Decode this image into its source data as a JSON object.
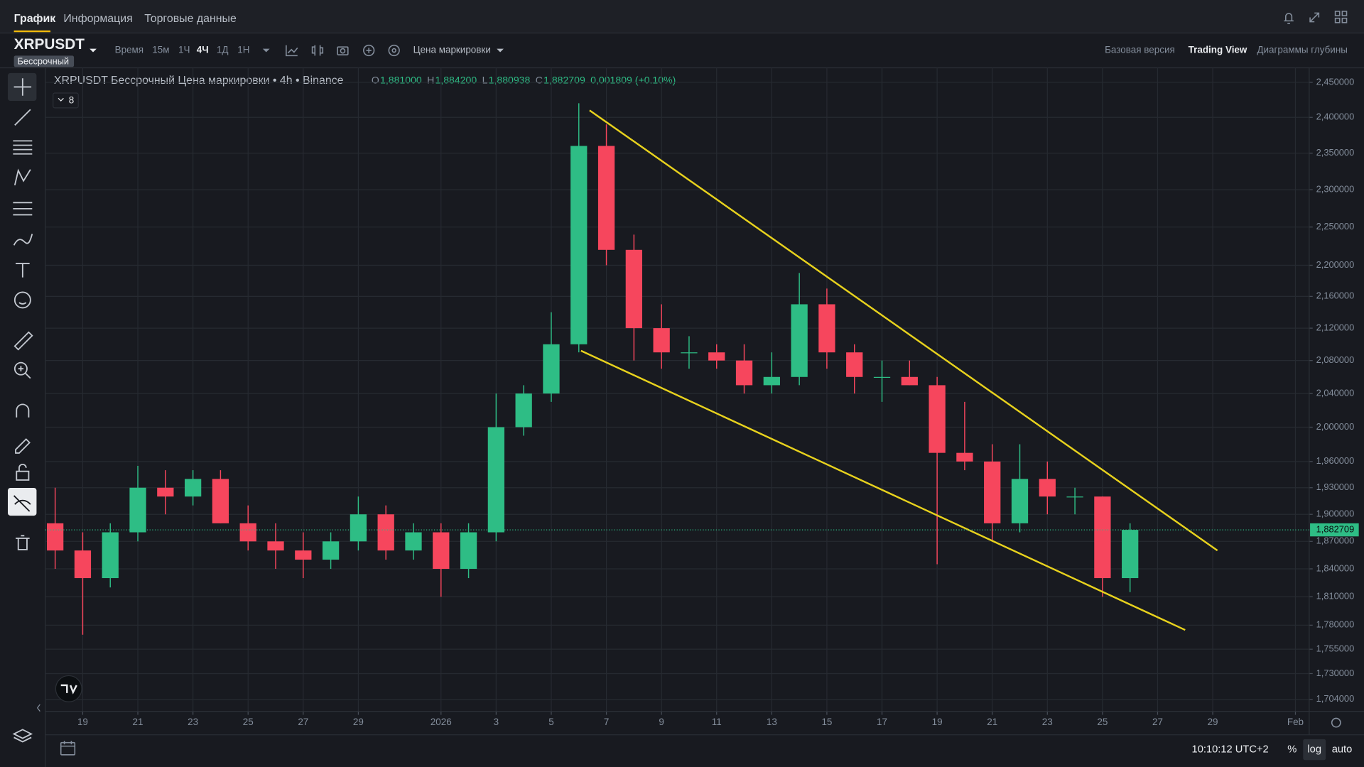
{
  "header": {
    "tabs": [
      "График",
      "Информация",
      "Торговые данные"
    ],
    "symbol": "XRPUSDT",
    "contract": "Бессрочный",
    "intervals_label": "Время",
    "intervals": [
      "15м",
      "1Ч",
      "4Ч",
      "1Д",
      "1Н"
    ],
    "price_type": "Цена маркировки",
    "views": [
      "Базовая версия",
      "Trading View",
      "Диаграммы глубины"
    ]
  },
  "legend": {
    "title": "XRPUSDT Бессрочный Цена маркировки • 4h • Binance",
    "ohlc": [
      {
        "key": "O",
        "value": "1,881000"
      },
      {
        "key": "H",
        "value": "1,884200"
      },
      {
        "key": "L",
        "value": "1,880938"
      },
      {
        "key": "C",
        "value": "1,882709"
      }
    ],
    "change": "0,001809 (+0.10%)",
    "indicators": "8"
  },
  "footer": {
    "time": "10:10:12 UTC+2",
    "percent": "%",
    "log": "log",
    "auto": "auto"
  },
  "chart_data": {
    "type": "candlestick",
    "log_scale": true,
    "grid": true,
    "up_color": "#2ebd85",
    "down_color": "#f6465d",
    "x": [
      -1,
      0,
      1,
      2,
      3,
      4,
      5,
      6,
      7,
      8,
      9,
      10,
      11,
      12,
      13,
      14,
      15,
      16,
      17,
      18,
      19,
      20,
      21,
      22,
      23,
      24,
      25,
      26,
      27,
      28,
      29,
      30,
      31,
      32,
      33,
      34,
      35,
      36,
      37,
      38
    ],
    "open": [
      1.89,
      1.86,
      1.83,
      1.88,
      1.93,
      1.92,
      1.94,
      1.89,
      1.87,
      1.86,
      1.85,
      1.87,
      1.9,
      1.86,
      1.88,
      1.84,
      1.88,
      2.0,
      2.04,
      2.1,
      2.36,
      2.22,
      2.12,
      2.09,
      2.09,
      2.08,
      2.05,
      2.06,
      2.15,
      2.09,
      2.06,
      2.06,
      2.05,
      1.97,
      1.96,
      1.89,
      1.94,
      1.92,
      1.92,
      1.83
    ],
    "high": [
      1.93,
      1.88,
      1.89,
      1.955,
      1.95,
      1.95,
      1.95,
      1.91,
      1.89,
      1.88,
      1.88,
      1.92,
      1.91,
      1.89,
      1.89,
      1.89,
      2.04,
      2.05,
      2.14,
      2.42,
      2.39,
      2.24,
      2.15,
      2.11,
      2.1,
      2.1,
      2.09,
      2.19,
      2.17,
      2.1,
      2.08,
      2.08,
      2.06,
      2.03,
      1.98,
      1.98,
      1.96,
      1.93,
      1.92,
      1.89
    ],
    "low": [
      1.84,
      1.77,
      1.82,
      1.87,
      1.9,
      1.91,
      1.89,
      1.86,
      1.84,
      1.83,
      1.84,
      1.86,
      1.85,
      1.85,
      1.81,
      1.83,
      1.87,
      1.99,
      2.03,
      2.09,
      2.2,
      2.08,
      2.07,
      2.07,
      2.07,
      2.04,
      2.04,
      2.05,
      2.07,
      2.04,
      2.03,
      2.05,
      1.845,
      1.95,
      1.87,
      1.88,
      1.9,
      1.9,
      1.81,
      1.815
    ],
    "close": [
      1.86,
      1.83,
      1.88,
      1.93,
      1.92,
      1.94,
      1.89,
      1.87,
      1.86,
      1.85,
      1.87,
      1.9,
      1.86,
      1.88,
      1.84,
      1.88,
      2.0,
      2.04,
      2.1,
      2.36,
      2.22,
      2.12,
      2.09,
      2.09,
      2.08,
      2.05,
      2.06,
      2.15,
      2.09,
      2.06,
      2.06,
      2.05,
      1.97,
      1.96,
      1.89,
      1.94,
      1.92,
      1.92,
      1.83,
      1.882709
    ],
    "xlim": [
      -1.36,
      44.5
    ],
    "xticks": [
      {
        "value": 0,
        "label": "19"
      },
      {
        "value": 2,
        "label": "21"
      },
      {
        "value": 4,
        "label": "23"
      },
      {
        "value": 6,
        "label": "25"
      },
      {
        "value": 8,
        "label": "27"
      },
      {
        "value": 10,
        "label": "29"
      },
      {
        "value": 13,
        "label": "2026"
      },
      {
        "value": 15,
        "label": "3"
      },
      {
        "value": 17,
        "label": "5"
      },
      {
        "value": 19,
        "label": "7"
      },
      {
        "value": 21,
        "label": "9"
      },
      {
        "value": 23,
        "label": "11"
      },
      {
        "value": 25,
        "label": "13"
      },
      {
        "value": 27,
        "label": "15"
      },
      {
        "value": 29,
        "label": "17"
      },
      {
        "value": 31,
        "label": "19"
      },
      {
        "value": 33,
        "label": "21"
      },
      {
        "value": 35,
        "label": "23"
      },
      {
        "value": 37,
        "label": "25"
      },
      {
        "value": 39,
        "label": "27"
      },
      {
        "value": 41,
        "label": "29"
      },
      {
        "value": 44,
        "label": "Feb"
      }
    ],
    "ylim": [
      1.692,
      2.471
    ],
    "yticks": [
      {
        "value": 2.45,
        "label": "2,450000"
      },
      {
        "value": 2.4,
        "label": "2,400000"
      },
      {
        "value": 2.35,
        "label": "2,350000"
      },
      {
        "value": 2.3,
        "label": "2,300000"
      },
      {
        "value": 2.25,
        "label": "2,250000"
      },
      {
        "value": 2.2,
        "label": "2,200000"
      },
      {
        "value": 2.16,
        "label": "2,160000"
      },
      {
        "value": 2.12,
        "label": "2,120000"
      },
      {
        "value": 2.08,
        "label": "2,080000"
      },
      {
        "value": 2.04,
        "label": "2,040000"
      },
      {
        "value": 2.0,
        "label": "2,000000"
      },
      {
        "value": 1.96,
        "label": "1,960000"
      },
      {
        "value": 1.93,
        "label": "1,930000"
      },
      {
        "value": 1.9,
        "label": "1,900000"
      },
      {
        "value": 1.87,
        "label": "1,870000"
      },
      {
        "value": 1.84,
        "label": "1,840000"
      },
      {
        "value": 1.81,
        "label": "1,810000"
      },
      {
        "value": 1.78,
        "label": "1,780000"
      },
      {
        "value": 1.755,
        "label": "1,755000"
      },
      {
        "value": 1.73,
        "label": "1,730000"
      },
      {
        "value": 1.704,
        "label": "1,704000"
      }
    ],
    "price_line": {
      "value": 1.882709,
      "label": "1,882709",
      "color": "#2ebd85"
    },
    "lines": [
      {
        "x": [
          18.39,
          41.17
        ],
        "y": [
          2.41,
          1.86
        ],
        "color": "#e8d21d"
      },
      {
        "x": [
          18.08,
          40.0
        ],
        "y": [
          2.092,
          1.775
        ],
        "color": "#e8d21d"
      }
    ]
  }
}
